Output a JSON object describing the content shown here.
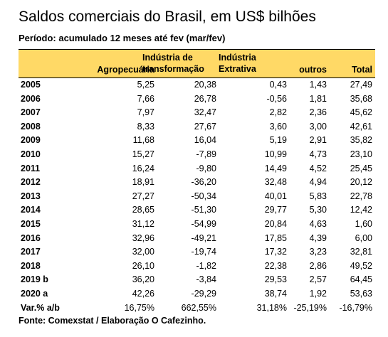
{
  "title": "Saldos comerciais do Brasil, em US$ bilhões",
  "subtitle": "Período: acumulado 12 meses até fev (mar/fev)",
  "headers": {
    "agro": "Agropecuária",
    "ind_line1": "Indústria de",
    "ind_line2": "transformação",
    "ext_line1": "Indústria",
    "ext_line2": "Extrativa",
    "outros": "outros",
    "total": "Total"
  },
  "rows": [
    {
      "year": "2005",
      "agro": "5,25",
      "ind": "20,38",
      "ext": "0,43",
      "outros": "1,43",
      "total": "27,49"
    },
    {
      "year": "2006",
      "agro": "7,66",
      "ind": "26,78",
      "ext": "-0,56",
      "outros": "1,81",
      "total": "35,68"
    },
    {
      "year": "2007",
      "agro": "7,97",
      "ind": "32,47",
      "ext": "2,82",
      "outros": "2,36",
      "total": "45,62"
    },
    {
      "year": "2008",
      "agro": "8,33",
      "ind": "27,67",
      "ext": "3,60",
      "outros": "3,00",
      "total": "42,61"
    },
    {
      "year": "2009",
      "agro": "11,68",
      "ind": "16,04",
      "ext": "5,19",
      "outros": "2,91",
      "total": "35,82"
    },
    {
      "year": "2010",
      "agro": "15,27",
      "ind": "-7,89",
      "ext": "10,99",
      "outros": "4,73",
      "total": "23,10"
    },
    {
      "year": "2011",
      "agro": "16,24",
      "ind": "-9,80",
      "ext": "14,49",
      "outros": "4,52",
      "total": "25,45"
    },
    {
      "year": "2012",
      "agro": "18,91",
      "ind": "-36,20",
      "ext": "32,48",
      "outros": "4,94",
      "total": "20,12"
    },
    {
      "year": "2013",
      "agro": "27,27",
      "ind": "-50,34",
      "ext": "40,01",
      "outros": "5,83",
      "total": "22,78"
    },
    {
      "year": "2014",
      "agro": "28,65",
      "ind": "-51,30",
      "ext": "29,77",
      "outros": "5,30",
      "total": "12,42"
    },
    {
      "year": "2015",
      "agro": "31,12",
      "ind": "-54,99",
      "ext": "20,84",
      "outros": "4,63",
      "total": "1,60"
    },
    {
      "year": "2016",
      "agro": "32,96",
      "ind": "-49,21",
      "ext": "17,85",
      "outros": "4,39",
      "total": "6,00"
    },
    {
      "year": "2017",
      "agro": "32,00",
      "ind": "-19,74",
      "ext": "17,32",
      "outros": "3,23",
      "total": "32,81"
    },
    {
      "year": "2018",
      "agro": "26,10",
      "ind": "-1,82",
      "ext": "22,38",
      "outros": "2,86",
      "total": "49,52"
    },
    {
      "year": "2019 b",
      "agro": "36,20",
      "ind": "-3,84",
      "ext": "29,53",
      "outros": "2,57",
      "total": "64,45"
    },
    {
      "year": "2020 a",
      "agro": "42,26",
      "ind": "-29,29",
      "ext": "38,74",
      "outros": "1,92",
      "total": "53,63"
    },
    {
      "year": "Var.% a/b",
      "agro": "16,75%",
      "ind": "662,55%",
      "ext": "31,18%",
      "outros": "-25,19%",
      "total": "-16,79%"
    }
  ],
  "source": "Fonte: Comexstat / Elaboração O Cafezinho.",
  "colors": {
    "header_bg": "#ffd966"
  }
}
